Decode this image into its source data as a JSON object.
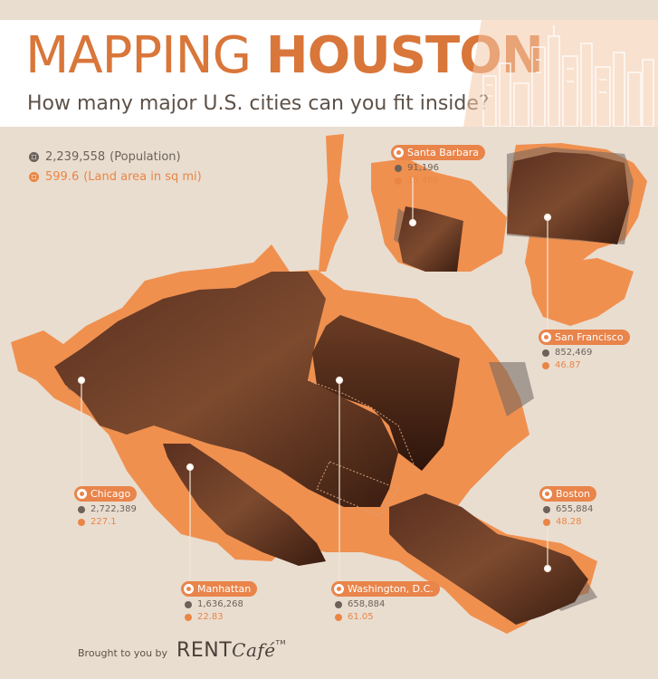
{
  "header": {
    "title_light": "MAPPING",
    "title_bold": "HOUSTON",
    "subtitle": "How many major U.S. cities can you fit inside?"
  },
  "legend": {
    "population": "2,239,558",
    "population_label": "(Population)",
    "area": "599.6",
    "area_label": "(Land area in sq mi)",
    "population_icon": "person-icon",
    "area_icon": "area-icon"
  },
  "cities": [
    {
      "name": "Santa Barbara",
      "population": "91,196",
      "area": "19.468"
    },
    {
      "name": "San Francisco",
      "population": "852,469",
      "area": "46.87"
    },
    {
      "name": "Chicago",
      "population": "2,722,389",
      "area": "227.1"
    },
    {
      "name": "Boston",
      "population": "655,884",
      "area": "48.28"
    },
    {
      "name": "Manhattan",
      "population": "1,636,268",
      "area": "22.83"
    },
    {
      "name": "Washington, D.C.",
      "population": "658,884",
      "area": "61.05"
    }
  ],
  "credit": {
    "by": "Brought to you by",
    "brand_a": "RENT",
    "brand_b": "Café",
    "tm": "TM"
  },
  "colors": {
    "background": "#e9ddd0",
    "houston": "#f0904f",
    "city_fill": "#6a3a22",
    "accent": "#e9844a",
    "text": "#5d5148"
  }
}
